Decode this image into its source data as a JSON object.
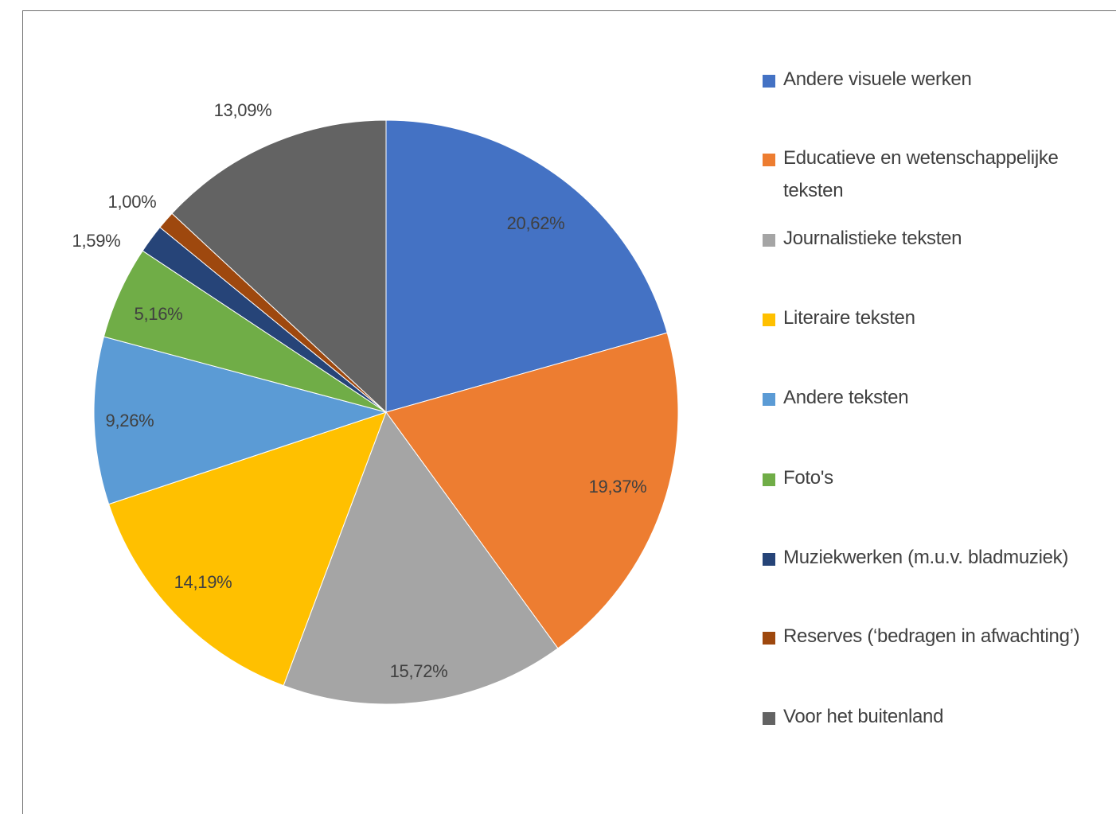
{
  "chart_data": {
    "type": "pie",
    "slices": [
      {
        "label": "Andere visuele werken",
        "value": 20.62,
        "display": "20,62%",
        "color": "#4472c4"
      },
      {
        "label": "Educatieve en wetenschappelijke teksten",
        "value": 19.37,
        "display": "19,37%",
        "color": "#ed7d31"
      },
      {
        "label": "Journalistieke teksten",
        "value": 15.72,
        "display": "15,72%",
        "color": "#a5a5a5"
      },
      {
        "label": "Literaire teksten",
        "value": 14.19,
        "display": "14,19%",
        "color": "#ffc000"
      },
      {
        "label": "Andere teksten",
        "value": 9.26,
        "display": "9,26%",
        "color": "#5b9bd5"
      },
      {
        "label": "Foto's",
        "value": 5.16,
        "display": "5,16%",
        "color": "#70ad47"
      },
      {
        "label": "Muziekwerken (m.u.v. bladmuziek)",
        "value": 1.59,
        "display": "1,59%",
        "color": "#264478"
      },
      {
        "label": "Reserves (‘bedragen in afwachting’)",
        "value": 1.0,
        "display": "1,00%",
        "color": "#9e480e"
      },
      {
        "label": "Voor het buitenland",
        "value": 13.09,
        "display": "13,09%",
        "color": "#636363"
      }
    ],
    "legend_position": "right",
    "start_angle": "12 o'clock, clockwise"
  }
}
